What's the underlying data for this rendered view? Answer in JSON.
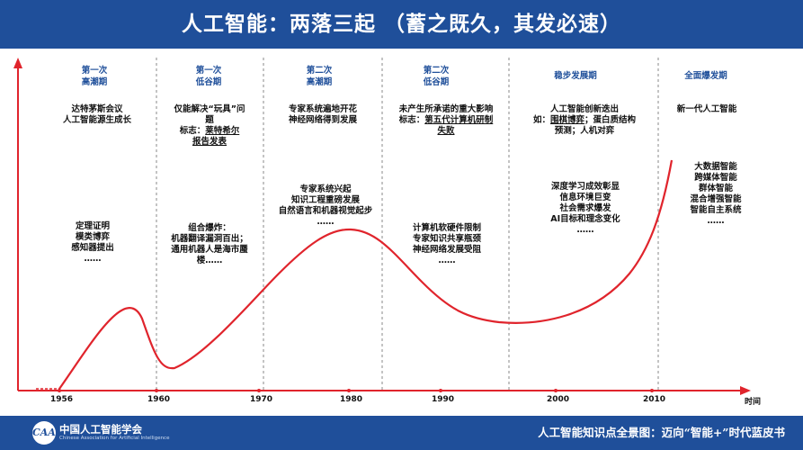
{
  "header": {
    "title": "人工智能：两落三起 （蓄之既久，其发必速）"
  },
  "phases": [
    {
      "line1": "第一次",
      "line2": "高潮期"
    },
    {
      "line1": "第一次",
      "line2": "低谷期"
    },
    {
      "line1": "第二次",
      "line2": "高潮期"
    },
    {
      "line1": "第二次",
      "line2": "低谷期"
    },
    {
      "line1": "稳步发展期",
      "line2": ""
    },
    {
      "line1": "全面爆发期",
      "line2": ""
    }
  ],
  "events": {
    "e1_top": {
      "lines": [
        "达特茅斯会议",
        "人工智能源生成长"
      ]
    },
    "e1_bottom": {
      "lines": [
        "定理证明",
        "模类博弈",
        "感知器提出",
        "……"
      ]
    },
    "e2_top": {
      "line1": "仅能解决“玩具”问",
      "line2": "题",
      "line3_prefix": "标志：",
      "line3_underlined": "莱特希尔",
      "line4_underlined": "报告发表"
    },
    "e2_bottom": {
      "lines": [
        "组合爆炸：",
        "机器翻译漏洞百出；",
        "通用机器人是海市蜃",
        "楼……"
      ]
    },
    "e3_top": {
      "lines": [
        "专家系统遍地开花",
        "神经网络得到发展"
      ]
    },
    "e3_bottom": {
      "lines": [
        "专家系统兴起",
        "知识工程重磅发展",
        "自然语言和机器视觉起步",
        "……"
      ]
    },
    "e4_top": {
      "line1": "未产生所承诺的重大影响",
      "line2_prefix": "标志：",
      "line2_underlined": "第五代计算机研制",
      "line3_underlined": "失败"
    },
    "e4_bottom": {
      "lines": [
        "计算机软硬件限制",
        "专家知识共享瓶颈",
        "神经网络发展受阻",
        "……"
      ]
    },
    "e5_top": {
      "line1": "人工智能创新迭出",
      "line2_prefix": "如：",
      "line2_underlined": "围棋博弈",
      "line2_suffix": "；蛋白质结构",
      "line3": "预测；人机对弈"
    },
    "e5_bottom": {
      "lines": [
        "深度学习成效彰显",
        "信息环境巨变",
        "社会需求爆发",
        "AI目标和理念变化",
        "……"
      ]
    },
    "e6_top": {
      "lines": [
        "新一代人工智能"
      ]
    },
    "e6_bottom": {
      "lines": [
        "大数据智能",
        "跨媒体智能",
        "群体智能",
        "混合增强智能",
        "智能自主系统",
        "……"
      ]
    }
  },
  "axis": {
    "ticks": [
      "1956",
      "1960",
      "1970",
      "1980",
      "1990",
      "2000",
      "2010"
    ],
    "x_label": "时间"
  },
  "footer": {
    "logo_text": "CAAI",
    "org_name": "中国人工智能学会",
    "org_en": "Chinese Association for Artificial Intelligence",
    "book_title": "人工智能知识点全景图：迈向“智能+”时代蓝皮书"
  },
  "colors": {
    "brand": "#1f4f9a",
    "curve": "#e0242c",
    "axis": "#e0242c",
    "divider": "#888888"
  }
}
